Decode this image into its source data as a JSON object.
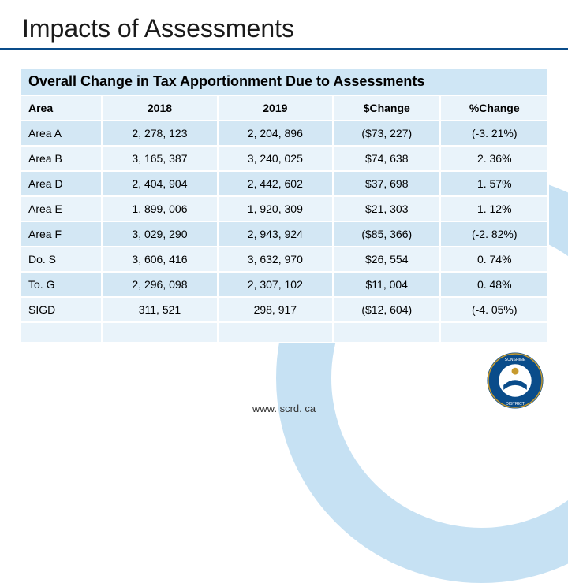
{
  "title": "Impacts of Assessments",
  "table": {
    "banner": "Overall Change in Tax Apportionment Due to Assessments",
    "columns": [
      "Area",
      "2018",
      "2019",
      "$Change",
      "%Change"
    ],
    "rows": [
      [
        "Area A",
        "2, 278, 123",
        "2, 204, 896",
        "($73, 227)",
        "(-3. 21%)"
      ],
      [
        "Area B",
        "3, 165, 387",
        "3, 240, 025",
        "$74, 638",
        "2. 36%"
      ],
      [
        "Area D",
        "2, 404, 904",
        "2, 442, 602",
        "$37, 698",
        "1. 57%"
      ],
      [
        "Area E",
        "1, 899, 006",
        "1, 920, 309",
        "$21, 303",
        "1. 12%"
      ],
      [
        "Area F",
        "3, 029, 290",
        "2, 943, 924",
        "($85, 366)",
        "(-2. 82%)"
      ],
      [
        "Do. S",
        "3, 606, 416",
        "3, 632, 970",
        "$26, 554",
        "0. 74%"
      ],
      [
        "To. G",
        "2, 296, 098",
        "2, 307, 102",
        "$11, 004",
        "0. 48%"
      ],
      [
        "SIGD",
        "311, 521",
        "298, 917",
        "($12, 604)",
        "(-4. 05%)"
      ]
    ],
    "header_bg": "#e9f3fa",
    "row_even_bg": "#e9f3fa",
    "row_odd_bg": "#d3e7f4",
    "banner_bg": "#cfe6f5",
    "border_color": "#ffffff",
    "font_size": 14
  },
  "footer_url": "www. scrd. ca",
  "colors": {
    "title_underline": "#0a4c8a",
    "arc": "rgba(160,205,235,0.6)",
    "logo_blue": "#0a4c8a",
    "logo_gold": "#c79a2e"
  }
}
